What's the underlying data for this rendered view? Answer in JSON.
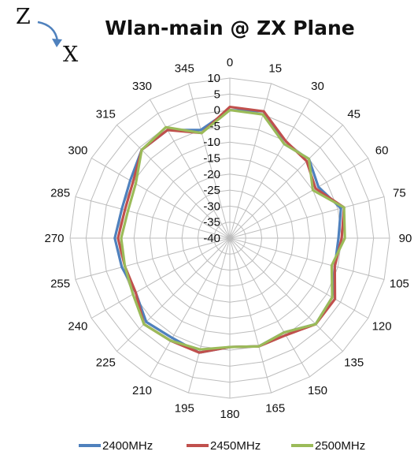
{
  "chart_data": {
    "type": "radar",
    "title": "Wlan-main @ ZX Plane",
    "axis_labels": {
      "top": "Z",
      "bottom": "X"
    },
    "angles": [
      0,
      15,
      30,
      45,
      60,
      75,
      90,
      105,
      120,
      135,
      150,
      165,
      180,
      195,
      210,
      225,
      240,
      255,
      270,
      285,
      300,
      315,
      330,
      345
    ],
    "angle_labels": [
      "0",
      "15",
      "30",
      "45",
      "60",
      "75",
      "90",
      "105",
      "120",
      "135",
      "150",
      "165",
      "180",
      "195",
      "210",
      "225",
      "240",
      "255",
      "270",
      "285",
      "300",
      "315",
      "330",
      "345"
    ],
    "r_ticks": [
      10,
      5,
      0,
      -5,
      -10,
      -15,
      -20,
      -25,
      -30,
      -35,
      -40
    ],
    "r_tick_labels": [
      "10",
      "5",
      "0",
      "-5",
      "-10",
      "-15",
      "-20",
      "-25",
      "-30",
      "-35",
      "-40"
    ],
    "rlim": [
      -40,
      10
    ],
    "series": [
      {
        "name": "2400MHz",
        "color": "#4f81bd",
        "values": [
          0,
          1,
          -6,
          -5,
          -8,
          -4,
          -6,
          -6,
          -3,
          -2,
          -6,
          -5,
          -6,
          -3,
          -4,
          -3,
          -6,
          -5,
          -4,
          -5,
          -4,
          -1,
          -1,
          -5
        ]
      },
      {
        "name": "2450MHz",
        "color": "#c0504d",
        "values": [
          1,
          1,
          -5,
          -6,
          -9,
          -3,
          -5,
          -6,
          -2,
          -2,
          -5,
          -5,
          -6,
          -3,
          -3,
          -2,
          -6,
          -6,
          -5,
          -6,
          -5,
          -1,
          -1,
          -6
        ]
      },
      {
        "name": "2500MHz",
        "color": "#9bbb59",
        "values": [
          0,
          0,
          -6,
          -5,
          -10,
          -3,
          -4,
          -7,
          -3,
          -2,
          -6,
          -5,
          -6,
          -4,
          -3,
          -2,
          -5,
          -6,
          -6,
          -7,
          -6,
          -1,
          0,
          -6
        ]
      }
    ],
    "legend": "bottom"
  }
}
